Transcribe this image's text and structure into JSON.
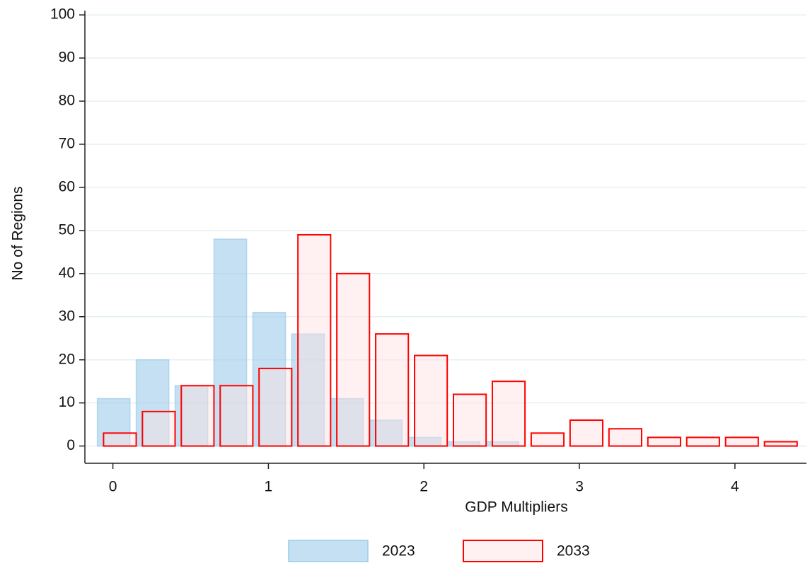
{
  "chart_data": {
    "type": "histogram",
    "xlabel": "GDP Multipliers",
    "ylabel": "No of Regions",
    "xlim": [
      -0.18,
      4.46
    ],
    "xticks": [
      0,
      1,
      2,
      3,
      4
    ],
    "ylim": [
      -4,
      101
    ],
    "yticks": [
      0,
      10,
      20,
      30,
      40,
      50,
      60,
      70,
      80,
      90,
      100
    ],
    "grid": true,
    "legend": "bottom",
    "series": [
      {
        "name": "2023",
        "color": "#9ccbea",
        "bins": [
          -0.12,
          0.13,
          0.38,
          0.63,
          0.88,
          1.13,
          1.38,
          1.63,
          1.88,
          2.13,
          2.38,
          2.63
        ],
        "values": [
          11,
          20,
          14,
          48,
          31,
          26,
          11,
          6,
          2,
          1,
          1
        ]
      },
      {
        "name": "2033",
        "color": "#ff0000",
        "bins": [
          -0.08,
          0.17,
          0.42,
          0.67,
          0.92,
          1.17,
          1.42,
          1.67,
          1.92,
          2.17,
          2.42,
          2.67,
          2.92,
          3.17,
          3.42,
          3.67,
          3.92,
          4.17,
          4.42
        ],
        "values": [
          3,
          8,
          14,
          14,
          18,
          49,
          40,
          26,
          21,
          12,
          15,
          3,
          6,
          4,
          2,
          2,
          2,
          1
        ]
      }
    ]
  }
}
